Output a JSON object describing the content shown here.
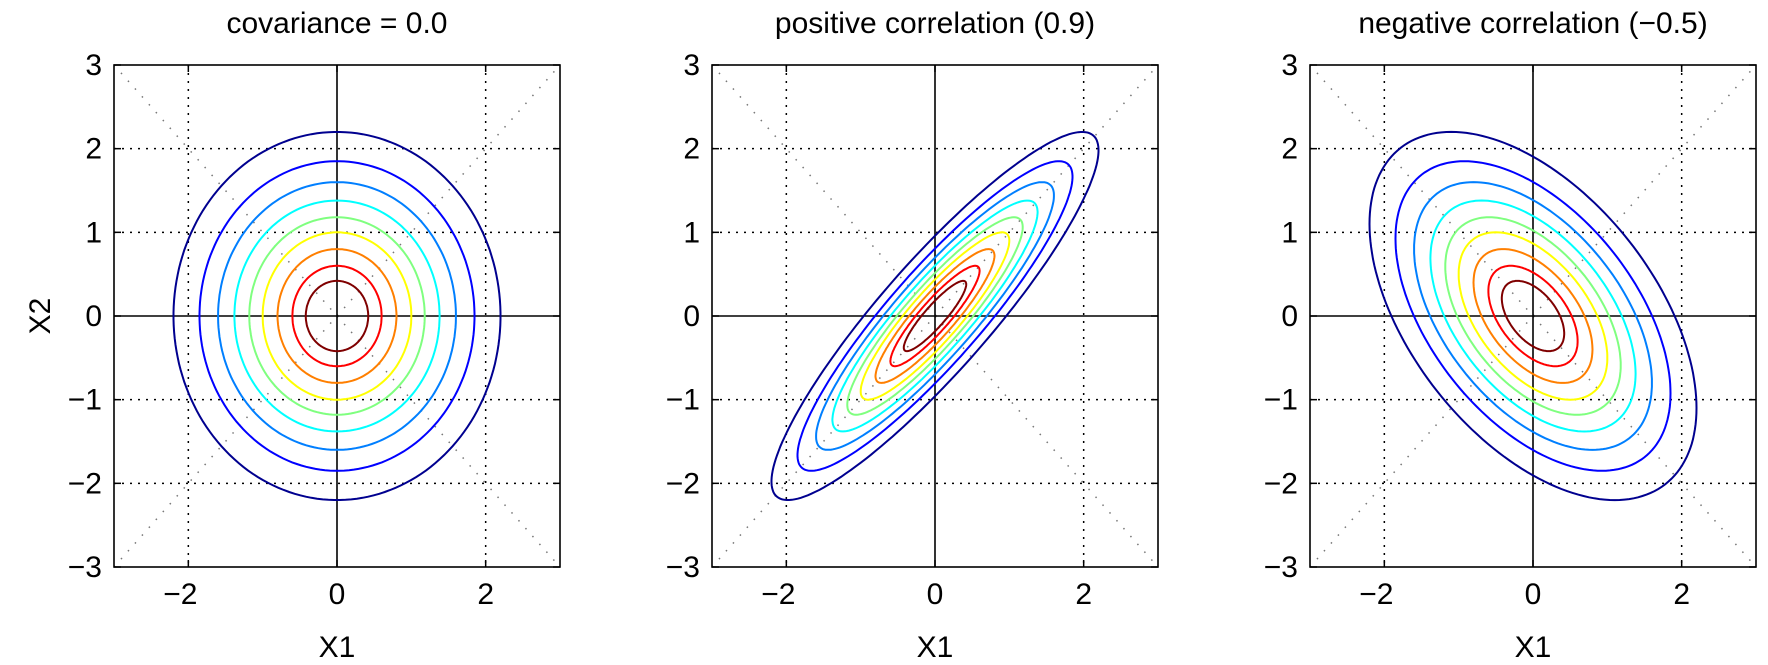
{
  "chart_data": [
    {
      "type": "contour",
      "title": "covariance = 0.0",
      "xlabel": "X1",
      "ylabel": "X2",
      "xlim": [
        -3,
        3
      ],
      "ylim": [
        -3,
        3
      ],
      "xticks": [
        -2,
        0,
        2
      ],
      "yticks": [
        -3,
        -2,
        -1,
        0,
        1,
        2,
        3
      ],
      "grid": true,
      "correlation": 0.0,
      "contour_levels": 9
    },
    {
      "type": "contour",
      "title": "positive correlation (0.9)",
      "xlabel": "X1",
      "ylabel": "",
      "xlim": [
        -3,
        3
      ],
      "ylim": [
        -3,
        3
      ],
      "xticks": [
        -2,
        0,
        2
      ],
      "yticks": [
        -3,
        -2,
        -1,
        0,
        1,
        2,
        3
      ],
      "grid": true,
      "correlation": 0.9,
      "contour_levels": 9
    },
    {
      "type": "contour",
      "title": "negative correlation (−0.5)",
      "xlabel": "X1",
      "ylabel": "",
      "xlim": [
        -3,
        3
      ],
      "ylim": [
        -3,
        3
      ],
      "xticks": [
        -2,
        0,
        2
      ],
      "yticks": [
        -3,
        -2,
        -1,
        0,
        1,
        2,
        3
      ],
      "grid": true,
      "correlation": -0.5,
      "contour_levels": 9
    }
  ],
  "colormap": [
    "#00008f",
    "#0000ff",
    "#007fff",
    "#00ffff",
    "#7fff7f",
    "#ffff00",
    "#ff7f00",
    "#ff0000",
    "#7f0000"
  ]
}
